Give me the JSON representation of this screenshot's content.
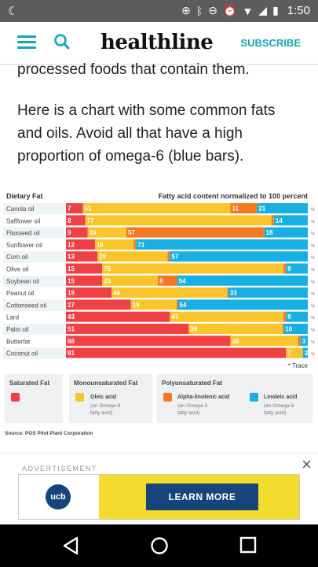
{
  "status": {
    "time": "1:50"
  },
  "header": {
    "logo": "healthline",
    "subscribe": "SUBSCRIBE"
  },
  "article": {
    "p1": "processed foods that contain them.",
    "p2": "Here is a chart with some common fats and oils. Avoid all that have a high proportion of omega-6 (blue bars)."
  },
  "chart_data": {
    "type": "bar",
    "stacked": true,
    "orientation": "horizontal",
    "row_header": "Dietary Fat",
    "title": "Fatty acid content normalized to 100 percent",
    "unit": "%",
    "categories": [
      "Canola oil",
      "Safflower oil",
      "Flaxseed oil",
      "Sunflower oil",
      "Corn oil",
      "Olive oil",
      "Soybean oil",
      "Peanut oil",
      "Cottonseed oil",
      "Lard",
      "Palm oil",
      "Butterfat",
      "Coconut oil"
    ],
    "series": [
      {
        "name": "Saturated Fat",
        "color": "#ef4044",
        "values": [
          7,
          8,
          9,
          12,
          13,
          15,
          15,
          19,
          27,
          43,
          51,
          68,
          91
        ]
      },
      {
        "name": "Oleic acid",
        "color": "#f9c52a",
        "values": [
          61,
          77,
          16,
          16,
          29,
          75,
          23,
          48,
          19,
          47,
          39,
          28,
          7
        ]
      },
      {
        "name": "Alpha-linolenic acid",
        "color": "#f2791f",
        "values": [
          11,
          1,
          57,
          1,
          1,
          1,
          8,
          0.5,
          0.5,
          1,
          0.5,
          1,
          0
        ]
      },
      {
        "name": "Linoleic acid",
        "color": "#17b0e1",
        "values": [
          21,
          14,
          18,
          71,
          57,
          9,
          54,
          33,
          54,
          9,
          10,
          3,
          2
        ]
      }
    ],
    "labels": [
      [
        "7",
        "61",
        "11",
        "21"
      ],
      [
        "8",
        "77",
        "1",
        "14"
      ],
      [
        "9",
        "16",
        "57",
        "18"
      ],
      [
        "12",
        "16",
        "1",
        "71"
      ],
      [
        "13",
        "29",
        "1",
        "57"
      ],
      [
        "15",
        "75",
        "1",
        "9"
      ],
      [
        "15",
        "23",
        "8",
        "54"
      ],
      [
        "19",
        "48",
        "*",
        "33"
      ],
      [
        "27",
        "19",
        "*",
        "54"
      ],
      [
        "43",
        "47",
        "1",
        "9"
      ],
      [
        "51",
        "39",
        "*",
        "10"
      ],
      [
        "68",
        "28",
        "1",
        "3"
      ],
      [
        "91",
        "7",
        "",
        "2"
      ]
    ],
    "trace_note": "* Trace",
    "legend": {
      "saturated_title": "Saturated Fat",
      "mono_title": "Monounsaturated Fat",
      "poly_title": "Polyunsaturated Fat",
      "oleic": "Oleic acid",
      "oleic_sub1": "(an Omega-9",
      "oleic_sub2": "fatty acid)",
      "alpha": "Alpha-linolenic acid",
      "alpha_sub1": "(an Omega-3",
      "alpha_sub2": "fatty acid)",
      "linoleic": "Linoleic acid",
      "linoleic_sub1": "(an Omega-6",
      "linoleic_sub2": "fatty acid)"
    },
    "source": "Source: POS Pilot Plant Corporation"
  },
  "ad": {
    "label": "ADVERTISEMENT",
    "close": "×",
    "brand": "ucb",
    "cta": "LEARN MORE"
  }
}
